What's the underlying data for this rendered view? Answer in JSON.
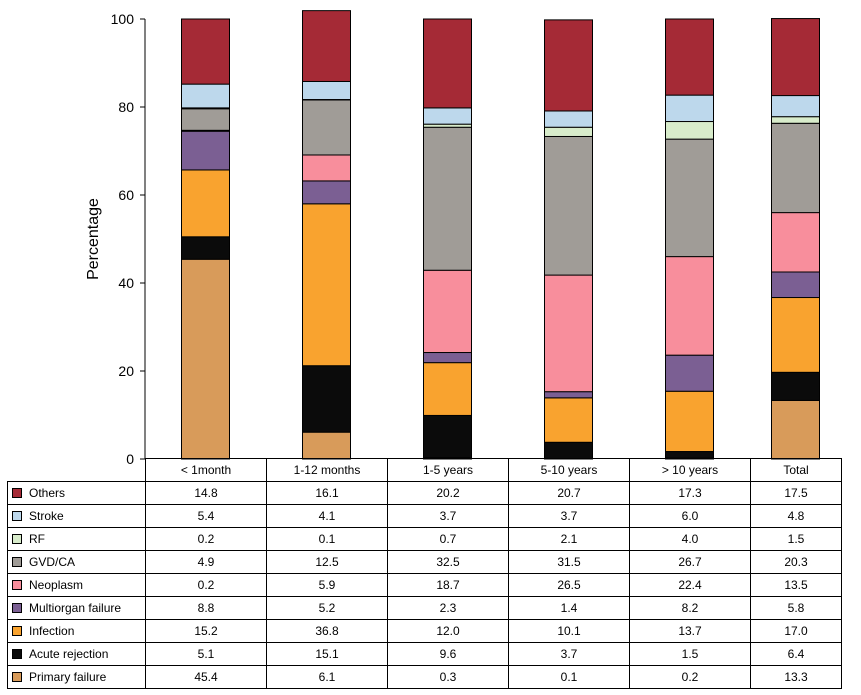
{
  "chart_data": {
    "type": "bar",
    "stacked": true,
    "ylabel": "Percentage",
    "ylim": [
      0,
      100
    ],
    "yticks": [
      0,
      20,
      40,
      60,
      80,
      100
    ],
    "grid": false,
    "categories": [
      "< 1month",
      "1-12 months",
      "1-5 years",
      "5-10 years",
      "> 10 years",
      "Total"
    ],
    "series": [
      {
        "name": "Primary failure",
        "color": "#d89b5a",
        "values": [
          45.4,
          6.1,
          0.3,
          0.1,
          0.2,
          13.3
        ]
      },
      {
        "name": "Acute rejection",
        "color": "#0b0b0b",
        "values": [
          5.1,
          15.1,
          9.6,
          3.7,
          1.5,
          6.4
        ]
      },
      {
        "name": "Infection",
        "color": "#f9a32f",
        "values": [
          15.2,
          36.8,
          12.0,
          10.1,
          13.7,
          17.0
        ]
      },
      {
        "name": "Multiorgan failure",
        "color": "#7b5f93",
        "values": [
          8.8,
          5.2,
          2.3,
          1.4,
          8.2,
          5.8
        ]
      },
      {
        "name": "Neoplasm",
        "color": "#f88e9c",
        "values": [
          0.2,
          5.9,
          18.7,
          26.5,
          22.4,
          13.5
        ]
      },
      {
        "name": "GVD/CA",
        "color": "#a09c97",
        "values": [
          4.9,
          12.5,
          32.5,
          31.5,
          26.7,
          20.3
        ]
      },
      {
        "name": "RF",
        "color": "#d8eccb",
        "values": [
          0.2,
          0.1,
          0.7,
          2.1,
          4.0,
          1.5
        ]
      },
      {
        "name": "Stroke",
        "color": "#bdd8ec",
        "values": [
          5.4,
          4.1,
          3.7,
          3.7,
          6.0,
          4.8
        ]
      },
      {
        "name": "Others",
        "color": "#a52a36",
        "values": [
          14.8,
          16.1,
          20.2,
          20.7,
          17.3,
          17.5
        ]
      }
    ],
    "table_rows": [
      {
        "name": "Others",
        "color": "#a52a36",
        "values": [
          "14.8",
          "16.1",
          "20.2",
          "20.7",
          "17.3",
          "17.5"
        ]
      },
      {
        "name": "Stroke",
        "color": "#bdd8ec",
        "values": [
          "5.4",
          "4.1",
          "3.7",
          "3.7",
          "6.0",
          "4.8"
        ]
      },
      {
        "name": "RF",
        "color": "#d8eccb",
        "values": [
          "0.2",
          "0.1",
          "0.7",
          "2.1",
          "4.0",
          "1.5"
        ]
      },
      {
        "name": "GVD/CA",
        "color": "#a09c97",
        "values": [
          "4.9",
          "12.5",
          "32.5",
          "31.5",
          "26.7",
          "20.3"
        ]
      },
      {
        "name": "Neoplasm",
        "color": "#f88e9c",
        "values": [
          "0.2",
          "5.9",
          "18.7",
          "26.5",
          "22.4",
          "13.5"
        ]
      },
      {
        "name": "Multiorgan failure",
        "color": "#7b5f93",
        "values": [
          "8.8",
          "5.2",
          "2.3",
          "1.4",
          "8.2",
          "5.8"
        ]
      },
      {
        "name": "Infection",
        "color": "#f9a32f",
        "values": [
          "15.2",
          "36.8",
          "12.0",
          "10.1",
          "13.7",
          "17.0"
        ]
      },
      {
        "name": "Acute rejection",
        "color": "#0b0b0b",
        "values": [
          "5.1",
          "15.1",
          "9.6",
          "3.7",
          "1.5",
          "6.4"
        ]
      },
      {
        "name": "Primary failure",
        "color": "#d89b5a",
        "values": [
          "45.4",
          "6.1",
          "0.3",
          "0.1",
          "0.2",
          "13.3"
        ]
      }
    ]
  }
}
